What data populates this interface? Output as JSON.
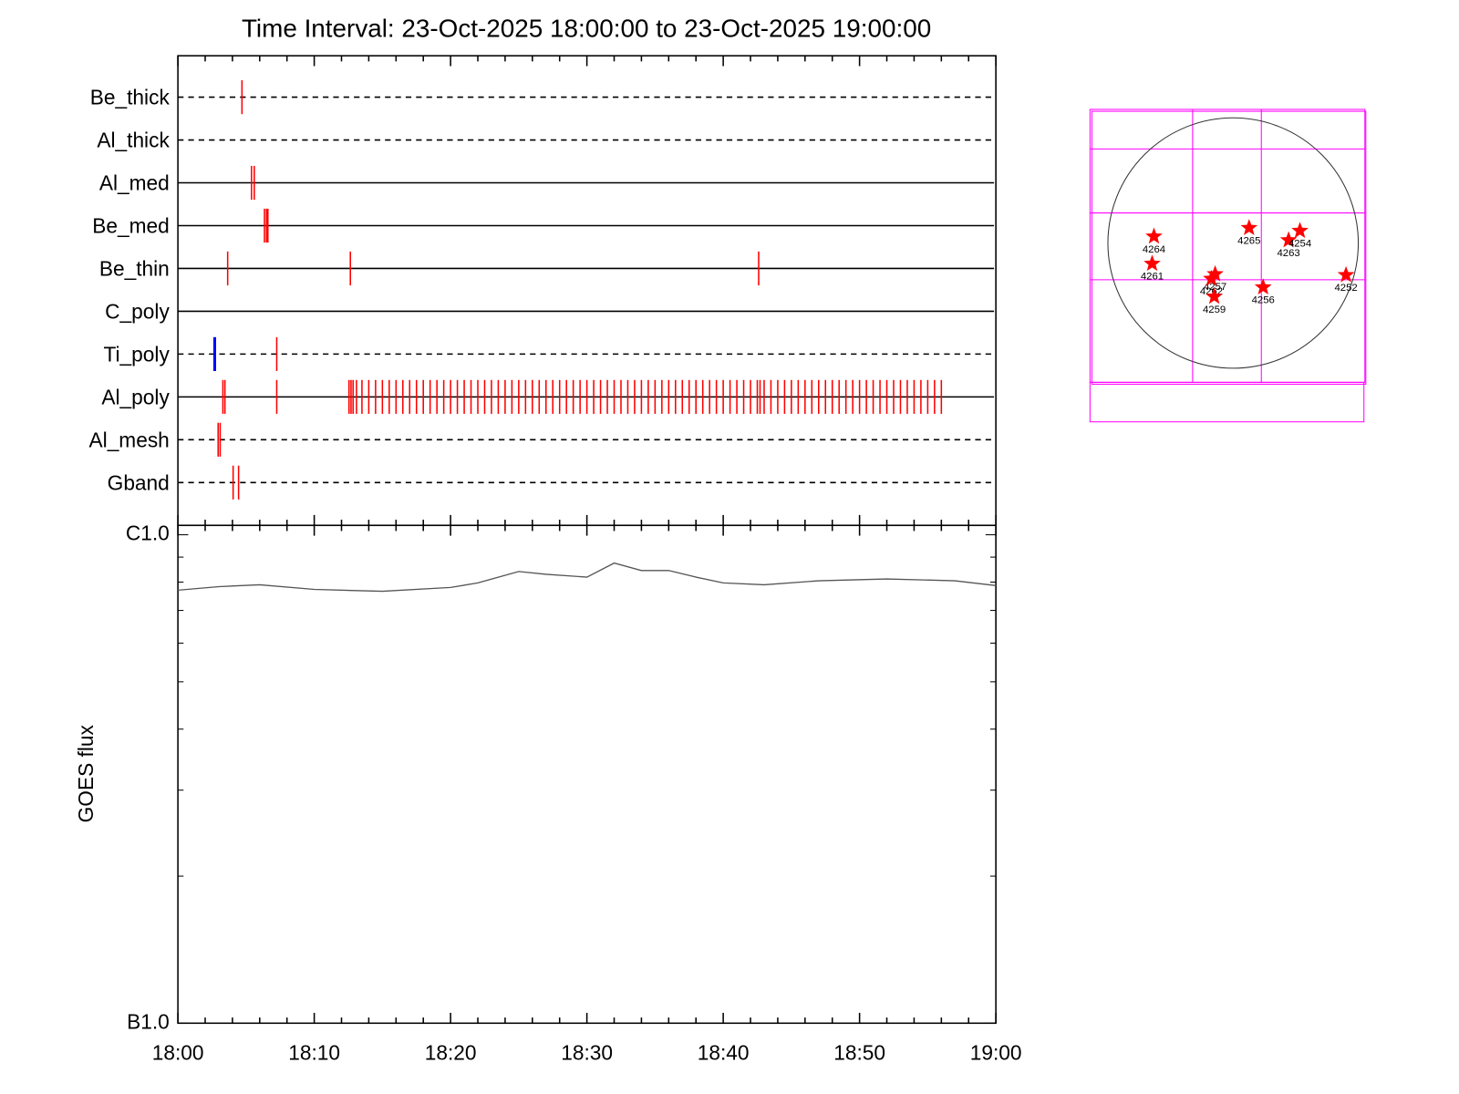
{
  "chart_data": [
    {
      "type": "timeline",
      "title": "Time Interval: 23-Oct-2025 18:00:00 to 23-Oct-2025 19:00:00",
      "xlim": [
        0,
        60
      ],
      "series": [
        {
          "name": "Be_thick",
          "style": "dashed",
          "color": "#ff0000",
          "values": [
            4.7
          ]
        },
        {
          "name": "Al_thick",
          "style": "dashed",
          "color": "#ff0000",
          "values": []
        },
        {
          "name": "Al_med",
          "style": "solid",
          "color": "#ff0000",
          "values": [
            5.4,
            5.6
          ]
        },
        {
          "name": "Be_med",
          "style": "solid",
          "color": "#ff0000",
          "values": [
            6.35,
            6.5,
            6.6
          ]
        },
        {
          "name": "Be_thin",
          "style": "solid",
          "color": "#ff0000",
          "values": [
            3.65,
            12.65,
            42.6
          ]
        },
        {
          "name": "C_poly",
          "style": "solid",
          "color": "#ff0000",
          "values": []
        },
        {
          "name": "Ti_poly",
          "style": "dashed",
          "color": "#ff0000",
          "values": [
            2.7,
            7.25
          ],
          "event_colors": [
            "#0000ff",
            "#ff0000"
          ]
        },
        {
          "name": "Al_poly",
          "style": "solid",
          "color": "#ff0000",
          "values": [
            3.3,
            3.45,
            7.25,
            12.55,
            12.7,
            12.85,
            13.1,
            13.5,
            14,
            14.5,
            15,
            15.5,
            16,
            16.5,
            17,
            17.5,
            18,
            18.5,
            19,
            19.5,
            20,
            20.5,
            21,
            21.5,
            22,
            22.5,
            23,
            23.5,
            24,
            24.5,
            25,
            25.5,
            26,
            26.5,
            27,
            27.5,
            28,
            28.5,
            29,
            29.5,
            30,
            30.5,
            31,
            31.5,
            32,
            32.5,
            33,
            33.5,
            34,
            34.5,
            35,
            35.5,
            36,
            36.5,
            37,
            37.5,
            38,
            38.5,
            39,
            39.5,
            40,
            40.5,
            41,
            41.5,
            42,
            42.5,
            42.7,
            43,
            43.5,
            44,
            44.5,
            45,
            45.5,
            46,
            46.5,
            47,
            47.5,
            48,
            48.5,
            49,
            49.5,
            50,
            50.5,
            51,
            51.5,
            52,
            52.5,
            53,
            53.5,
            54,
            54.5,
            55,
            55.5,
            56
          ]
        },
        {
          "name": "Al_mesh",
          "style": "dashed",
          "color": "#ff0000",
          "values": [
            2.95,
            3.1
          ]
        },
        {
          "name": "Gband",
          "style": "dashed",
          "color": "#ff0000",
          "values": [
            4.05,
            4.45
          ]
        }
      ]
    },
    {
      "type": "line",
      "ylabel": "GOES flux",
      "log_y": true,
      "color": "#555555",
      "x": [
        0,
        3,
        6,
        10,
        15,
        20,
        22,
        25,
        27,
        30,
        32,
        34,
        36,
        38,
        40,
        43,
        47,
        52,
        57,
        60
      ],
      "values": [
        7.7e-07,
        7.83e-07,
        7.9e-07,
        7.73e-07,
        7.66e-07,
        7.8e-07,
        7.97e-07,
        8.41e-07,
        8.3e-07,
        8.19e-07,
        8.75e-07,
        8.45e-07,
        8.45e-07,
        8.19e-07,
        7.97e-07,
        7.9e-07,
        8.05e-07,
        8.12e-07,
        8.05e-07,
        7.87e-07
      ],
      "xlim": [
        0,
        60
      ],
      "xticks": [
        {
          "value": 0,
          "label": "18:00"
        },
        {
          "value": 10,
          "label": "18:10"
        },
        {
          "value": 20,
          "label": "18:20"
        },
        {
          "value": 30,
          "label": "18:30"
        },
        {
          "value": 40,
          "label": "18:40"
        },
        {
          "value": 50,
          "label": "18:50"
        },
        {
          "value": 60,
          "label": "19:00"
        }
      ],
      "minor_xticks": [
        2,
        4,
        6,
        8,
        12,
        14,
        16,
        18,
        22,
        24,
        26,
        28,
        32,
        34,
        36,
        38,
        42,
        44,
        46,
        48,
        52,
        54,
        56,
        58
      ],
      "ylim": [
        1e-07,
        1e-06
      ],
      "yticks": [
        {
          "value": 1e-06,
          "label": "C1.0"
        },
        {
          "value": 1e-07,
          "label": "B1.0"
        }
      ],
      "minor_yticks": [
        2e-07,
        3e-07,
        4e-07,
        5e-07,
        6e-07,
        7e-07,
        8e-07,
        9e-07
      ]
    },
    {
      "type": "map",
      "disk_radius": 970,
      "color": "#ff0000",
      "labels": [
        "4264",
        "4261",
        "4265",
        "4263",
        "4254",
        "4252",
        "4257",
        "4262",
        "4259",
        "4256"
      ],
      "x": [
        -613,
        -627,
        124,
        430,
        518,
        875,
        -139,
        -168,
        -146,
        233
      ],
      "y": [
        51,
        -160,
        117,
        22,
        95,
        -248,
        -241,
        -277,
        -416,
        -343
      ]
    }
  ]
}
